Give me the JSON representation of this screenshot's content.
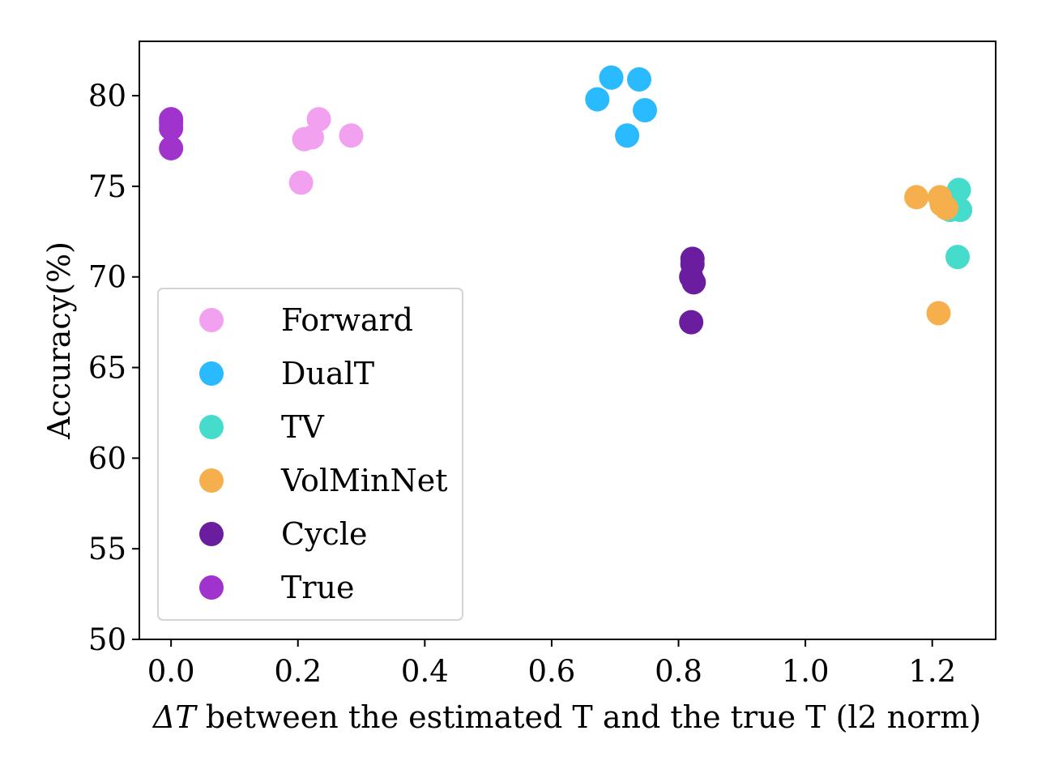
{
  "chart_data": {
    "type": "scatter",
    "title": "",
    "xlabel_symbol": "ΔT",
    "xlabel_text": " between the estimated T and the true T (l2 norm)",
    "ylabel": "Accuracy(%)",
    "xlim": [
      -0.05,
      1.3
    ],
    "ylim": [
      50,
      83
    ],
    "xticks": [
      0.0,
      0.2,
      0.4,
      0.6,
      0.8,
      1.0,
      1.2
    ],
    "xtick_labels": [
      "0.0",
      "0.2",
      "0.4",
      "0.6",
      "0.8",
      "1.0",
      "1.2"
    ],
    "yticks": [
      50,
      55,
      60,
      65,
      70,
      75,
      80
    ],
    "ytick_labels": [
      "50",
      "55",
      "60",
      "65",
      "70",
      "75",
      "80"
    ],
    "grid": false,
    "legend_position": "lower-left",
    "series": [
      {
        "name": "Forward",
        "color": "#f2a0f0",
        "x": [
          0.205,
          0.21,
          0.222,
          0.233,
          0.284
        ],
        "y": [
          75.2,
          77.6,
          77.7,
          78.7,
          77.8
        ]
      },
      {
        "name": "DualT",
        "color": "#29baff",
        "x": [
          0.672,
          0.694,
          0.719,
          0.738,
          0.747
        ],
        "y": [
          79.8,
          81.0,
          77.8,
          80.9,
          79.2
        ]
      },
      {
        "name": "TV",
        "color": "#45dccc",
        "x": [
          1.228,
          1.235,
          1.242,
          1.244,
          1.24
        ],
        "y": [
          73.7,
          74.2,
          74.8,
          73.7,
          71.1
        ]
      },
      {
        "name": "VolMinNet",
        "color": "#f5b04d",
        "x": [
          1.175,
          1.212,
          1.215,
          1.222,
          1.21
        ],
        "y": [
          74.4,
          74.4,
          74.0,
          73.8,
          68.0
        ]
      },
      {
        "name": "Cycle",
        "color": "#6a1d9e",
        "x": [
          0.822,
          0.822,
          0.82,
          0.824,
          0.82
        ],
        "y": [
          71.0,
          70.7,
          70.0,
          69.7,
          67.5
        ]
      },
      {
        "name": "True",
        "color": "#9f33cc",
        "x": [
          0.0,
          0.0,
          0.0,
          0.0
        ],
        "y": [
          78.7,
          78.5,
          78.2,
          77.1
        ]
      }
    ]
  }
}
